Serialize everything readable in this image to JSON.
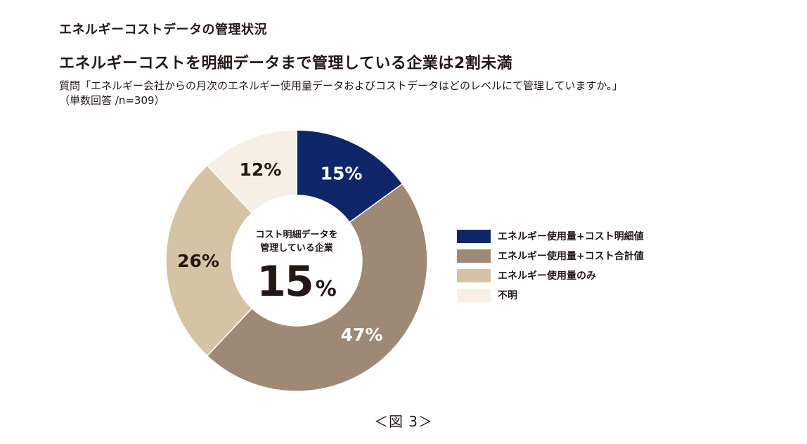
{
  "header": {
    "section_title": "エネルギーコストデータの管理状況",
    "headline": "エネルギーコストを明細データまで管理している企業は2割未満",
    "question_line1": "質問「エネルギー会社からの月次のエネルギー使用量データおよびコストデータはどのレベルにて管理していますか。」",
    "question_line2": "（単数回答 /n=309）"
  },
  "center": {
    "caption_line1": "コスト明細データを",
    "caption_line2": "管理している企業",
    "value": "15",
    "unit": "%"
  },
  "figure_caption": "＜図 3＞",
  "chart_data": {
    "type": "pie",
    "variant": "donut",
    "title": "エネルギーコストを明細データまで管理している企業は2割未満",
    "categories": [
      "エネルギー使用量+コスト明細値",
      "エネルギー使用量+コスト合計値",
      "エネルギー使用量のみ",
      "不明"
    ],
    "values": [
      15,
      47,
      26,
      12
    ],
    "labels": [
      "15%",
      "47%",
      "26%",
      "12%"
    ],
    "colors": [
      "#0f2669",
      "#9e8876",
      "#d6c3a5",
      "#f6efe6"
    ],
    "label_colors": [
      "#ffffff",
      "#ffffff",
      "#231815",
      "#231815"
    ],
    "legend_position": "right"
  }
}
